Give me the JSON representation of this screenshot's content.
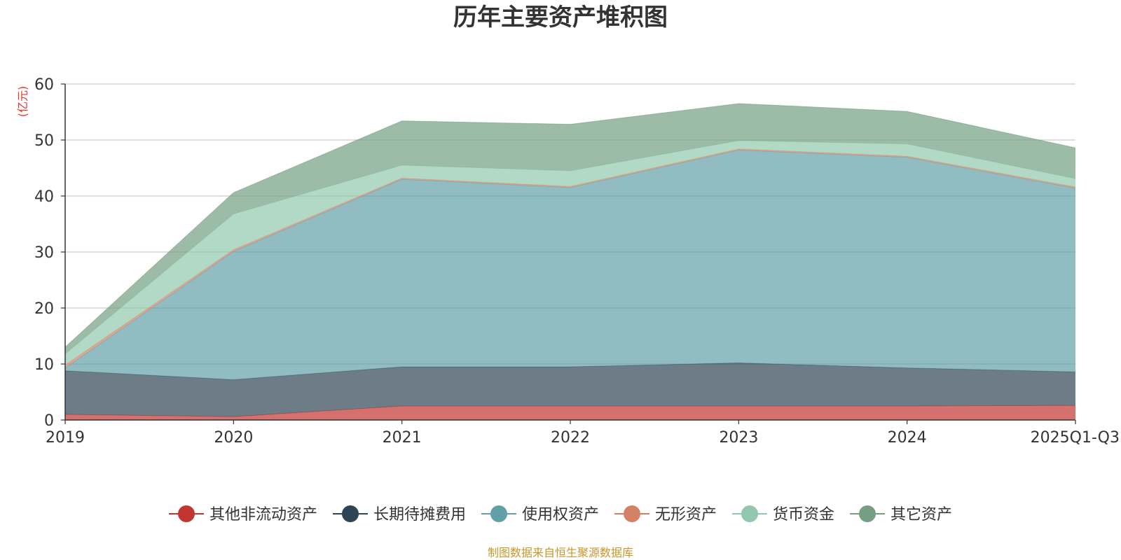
{
  "chart_data": {
    "type": "area",
    "stacked": true,
    "title": "历年主要资产堆积图",
    "ylabel": "(亿元)",
    "xlabel": "",
    "categories": [
      "2019",
      "2020",
      "2021",
      "2022",
      "2023",
      "2024",
      "2025Q1-Q3"
    ],
    "ylim": [
      0,
      60
    ],
    "yticks": [
      0,
      10,
      20,
      30,
      40,
      50,
      60
    ],
    "grid": true,
    "legend_position": "bottom",
    "series": [
      {
        "name": "其他非流动资产",
        "color": "#c23531",
        "values": [
          1.0,
          0.6,
          2.5,
          2.5,
          2.5,
          2.5,
          2.6
        ]
      },
      {
        "name": "长期待摊费用",
        "color": "#2f4554",
        "values": [
          7.8,
          6.6,
          7.0,
          7.0,
          7.7,
          6.8,
          6.0
        ]
      },
      {
        "name": "使用权资产",
        "color": "#61a0a8",
        "values": [
          0.5,
          22.9,
          33.5,
          32.0,
          38.0,
          37.6,
          32.8
        ]
      },
      {
        "name": "无形资产",
        "color": "#d48265",
        "values": [
          0.5,
          0.3,
          0.2,
          0.2,
          0.2,
          0.2,
          0.2
        ]
      },
      {
        "name": "货币资金",
        "color": "#91c7ae",
        "values": [
          2.0,
          6.4,
          2.3,
          2.8,
          1.5,
          2.2,
          1.5
        ]
      },
      {
        "name": "其它资产",
        "color": "#749f83",
        "values": [
          1.2,
          3.8,
          7.9,
          8.3,
          6.6,
          5.8,
          5.5
        ]
      }
    ]
  },
  "footer": {
    "source": "制图数据来自恒生聚源数据库"
  }
}
